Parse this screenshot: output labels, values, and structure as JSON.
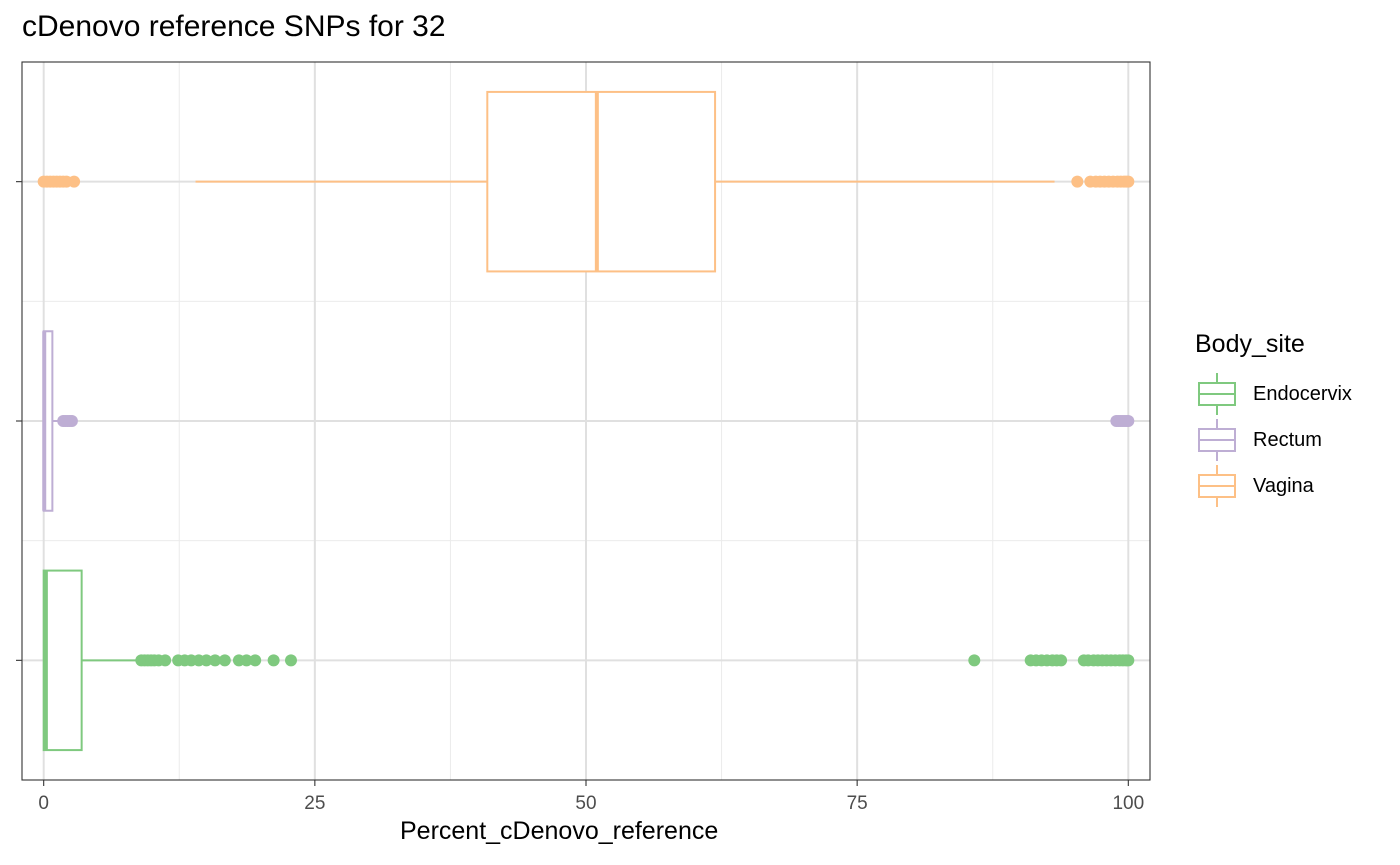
{
  "chart_data": {
    "type": "boxplot",
    "orientation": "horizontal",
    "title": "cDenovo reference SNPs for 32",
    "xlabel": "Percent_cDenovo_reference",
    "ylabel": "",
    "xlim": [
      -2,
      102
    ],
    "x_ticks": [
      0,
      25,
      50,
      75,
      100
    ],
    "x_tick_labels": [
      "0",
      "25",
      "50",
      "75",
      "100"
    ],
    "grid": true,
    "legend": {
      "title": "Body_site",
      "position": "right",
      "entries": [
        "Endocervix",
        "Rectum",
        "Vagina"
      ]
    },
    "series": [
      {
        "name": "Endocervix",
        "color": "#7fc97f",
        "stats": {
          "whisker_low": 0,
          "q1": 0,
          "median": 0.2,
          "q3": 3.5,
          "whisker_high": 8.5
        },
        "outliers": [
          9.0,
          9.3,
          9.6,
          9.9,
          10.2,
          10.6,
          11.2,
          12.4,
          13.0,
          13.6,
          14.3,
          15.0,
          15.8,
          16.7,
          18.0,
          18.7,
          19.5,
          21.2,
          22.8,
          85.8,
          91.0,
          91.5,
          92.0,
          92.5,
          93.0,
          93.4,
          93.8,
          95.9,
          96.3,
          96.8,
          97.2,
          97.6,
          98.0,
          98.4,
          98.8,
          99.2,
          99.5,
          99.8,
          100.0
        ]
      },
      {
        "name": "Rectum",
        "color": "#beaed4",
        "stats": {
          "whisker_low": 0,
          "q1": 0,
          "median": 0.05,
          "q3": 0.8,
          "whisker_high": 1.5
        },
        "outliers": [
          1.8,
          2.0,
          2.2,
          2.4,
          2.6,
          98.9,
          99.1,
          99.3,
          99.5,
          99.7,
          99.9,
          100.0
        ]
      },
      {
        "name": "Vagina",
        "color": "#fdc086",
        "stats": {
          "whisker_low": 14.0,
          "q1": 40.9,
          "median": 51.0,
          "q3": 61.9,
          "whisker_high": 93.2
        },
        "outliers": [
          0.0,
          0.3,
          0.6,
          0.9,
          1.2,
          1.5,
          1.8,
          2.1,
          2.8,
          95.3,
          96.5,
          97.0,
          97.4,
          97.8,
          98.2,
          98.6,
          99.0,
          99.3,
          99.6,
          99.8,
          100.0
        ]
      }
    ]
  }
}
